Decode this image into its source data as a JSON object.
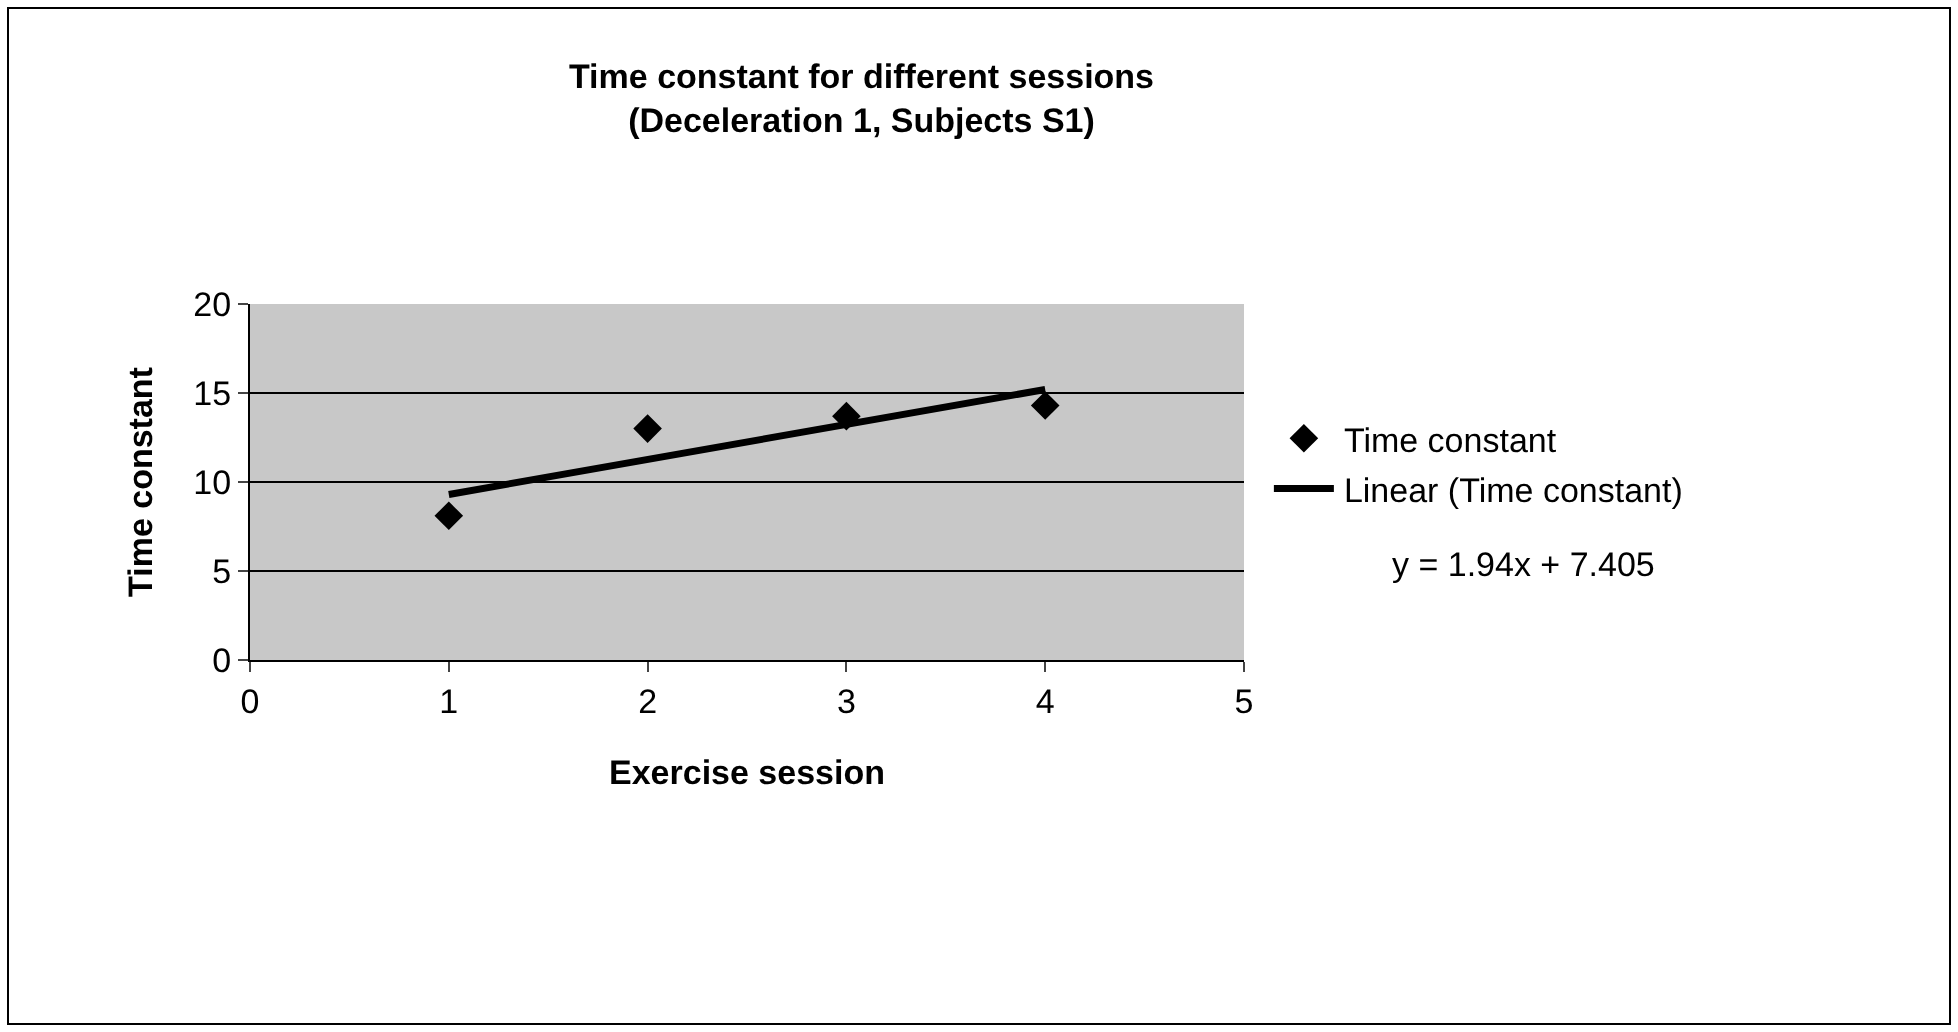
{
  "chart_data": {
    "type": "scatter",
    "title": "Time constant for different sessions\n(Deceleration 1, Subjects S1)",
    "xlabel": "Exercise session",
    "ylabel": "Time constant",
    "series": [
      {
        "name": "Time constant",
        "marker": "diamond",
        "color": "#000000",
        "x": [
          1,
          2,
          3,
          4
        ],
        "values": [
          8.1,
          13.0,
          13.7,
          14.3
        ]
      },
      {
        "name": "Linear (Time constant)",
        "type": "line",
        "marker": "none",
        "line_style": "solid",
        "color": "#000000",
        "x": [
          1,
          4
        ],
        "values": [
          9.3,
          15.2
        ]
      }
    ],
    "annotations": [
      "y = 1.94x + 7.405"
    ],
    "xlim": [
      0,
      5
    ],
    "xticks": [
      0,
      1,
      2,
      3,
      4,
      5
    ],
    "ylim": [
      0,
      20
    ],
    "yticks": [
      0,
      5,
      10,
      15,
      20
    ],
    "grid": "y",
    "legend": "right"
  }
}
